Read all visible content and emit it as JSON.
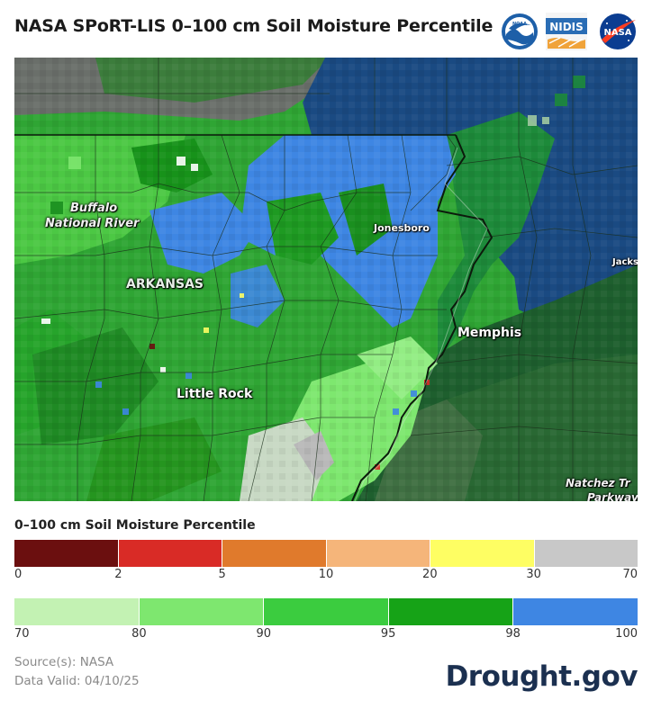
{
  "header": {
    "title": "NASA SPoRT-LIS 0–100 cm Soil Moisture Percentile",
    "logos": [
      {
        "name": "noaa-logo",
        "text": "NOAA"
      },
      {
        "name": "nidis-logo",
        "text": "NIDIS"
      },
      {
        "name": "nasa-logo",
        "text": "NASA"
      }
    ]
  },
  "map": {
    "labels": {
      "buffalo": "Buffalo",
      "national_river": "National River",
      "arkansas": "ARKANSAS",
      "jonesboro": "Jonesboro",
      "memphis": "Memphis",
      "little_rock": "Little Rock",
      "jackson": "Jacks",
      "natchez": "Natchez Tr",
      "parkway": "Parkway"
    }
  },
  "legend": {
    "title": "0–100 cm Soil Moisture Percentile",
    "low": {
      "colors": [
        "#6b0f0f",
        "#d92b26",
        "#e07a2c",
        "#f5b57a",
        "#fefe63",
        "#c8c8c8"
      ],
      "ticks": [
        "0",
        "2",
        "5",
        "10",
        "20",
        "30",
        "70"
      ]
    },
    "high": {
      "colors": [
        "#c3f2b3",
        "#7ee76f",
        "#3bcc3f",
        "#16a317",
        "#3e86e3"
      ],
      "ticks": [
        "70",
        "80",
        "90",
        "95",
        "98",
        "100"
      ]
    }
  },
  "footer": {
    "source": "Source(s): NASA",
    "valid": "Data Valid: 04/10/25",
    "brand": "Drought.gov"
  }
}
